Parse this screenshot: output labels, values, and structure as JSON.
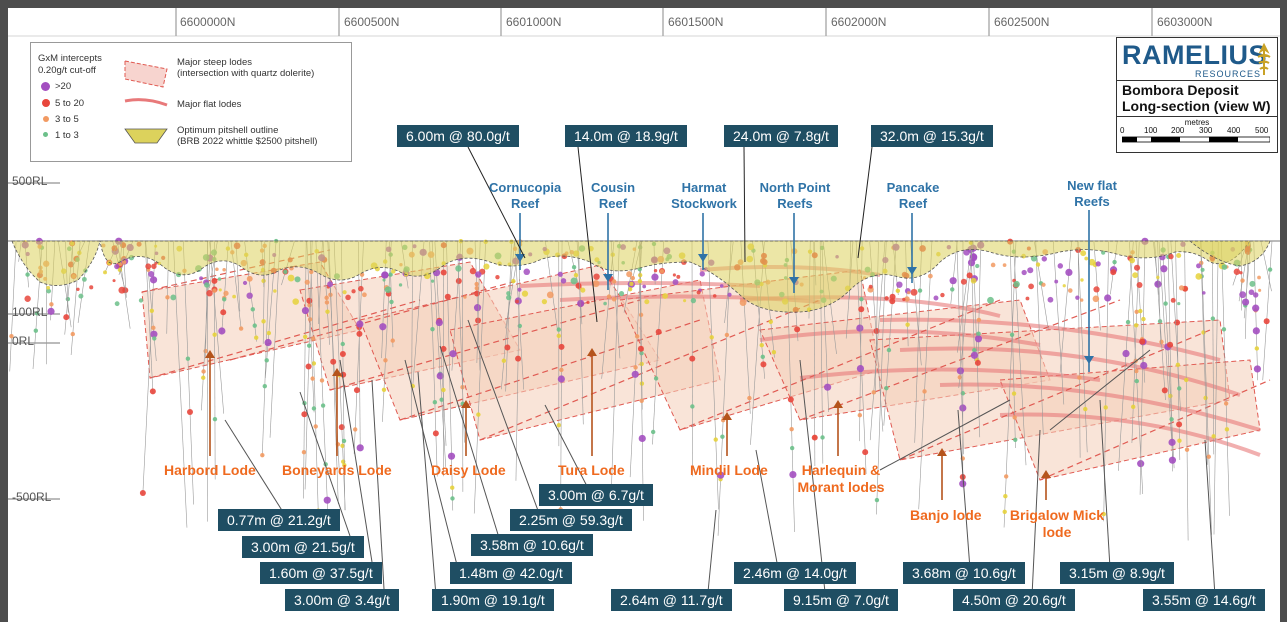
{
  "northings": [
    "6600000N",
    "6600500N",
    "6601000N",
    "6601500N",
    "6602000N",
    "6602500N",
    "6603000N"
  ],
  "rl_labels": [
    "500RL",
    "100RL",
    "0RL",
    "-500RL"
  ],
  "legend": {
    "title_line1": "GxM intercepts",
    "title_line2": "0.20g/t cut-off",
    "classes": [
      {
        "label": ">20",
        "color": "#a34fc0"
      },
      {
        "label": "5 to 20",
        "color": "#e8463c"
      },
      {
        "label": "3 to 5",
        "color": "#f29a62"
      },
      {
        "label": "1 to 3",
        "color": "#6cc08a"
      }
    ],
    "steep_line1": "Major steep lodes",
    "steep_line2": "(intersection with quartz dolerite)",
    "flat": "Major flat lodes",
    "pit_line1": "Optimum pitshell outline",
    "pit_line2": "(BRB 2022 whittle $2500 pitshell)"
  },
  "logo": {
    "name": "RAMELIUS",
    "sub": "RESOURCES",
    "title1": "Bombora Deposit",
    "title2": "Long-section (view W)",
    "scale_unit": "metres",
    "scale_ticks": [
      "0",
      "100",
      "200",
      "300",
      "400",
      "500"
    ]
  },
  "colors": {
    "background": "#ffffff",
    "frame": "#4d4d4d",
    "box": "#1f4e63",
    "lode_text": "#ef6a1f",
    "reef_text": "#2f73a7",
    "pit_fill": "#dcd25c"
  },
  "reefs": [
    {
      "line1": "Cornucopia",
      "line2": "Reef"
    },
    {
      "line1": "Cousin",
      "line2": "Reef"
    },
    {
      "line1": "Harmat",
      "line2": "Stockwork"
    },
    {
      "line1": "North Point",
      "line2": "Reefs"
    },
    {
      "line1": "Pancake",
      "line2": "Reef"
    },
    {
      "line1": "New flat",
      "line2": "Reefs"
    }
  ],
  "lodes": [
    {
      "line1": "Harbord Lode",
      "line2": ""
    },
    {
      "line1": "Boneyards Lode",
      "line2": ""
    },
    {
      "line1": "Daisy Lode",
      "line2": ""
    },
    {
      "line1": "Tura Lode",
      "line2": ""
    },
    {
      "line1": "Mindil Lode",
      "line2": ""
    },
    {
      "line1": "Harlequin &",
      "line2": "Morant lodes"
    },
    {
      "line1": "Banjo lode",
      "line2": ""
    },
    {
      "line1": "Brigalow Mick",
      "line2": "lode"
    }
  ],
  "intercepts": [
    "6.00m @ 80.0g/t",
    "14.0m @ 18.9g/t",
    "24.0m @ 7.8g/t",
    "32.0m @ 15.3g/t",
    "3.00m @ 6.7g/t",
    "2.25m @ 59.3g/t",
    "3.58m @ 10.6g/t",
    "1.48m @ 42.0g/t",
    "1.90m @ 19.1g/t",
    "0.77m @ 21.2g/t",
    "3.00m @ 21.5g/t",
    "1.60m @ 37.5g/t",
    "3.00m @ 3.4g/t",
    "2.64m @ 11.7g/t",
    "2.46m @ 14.0g/t",
    "9.15m @ 7.0g/t",
    "3.68m @ 10.6g/t",
    "4.50m @ 20.6g/t",
    "3.15m @ 8.9g/t",
    "3.55m @ 14.6g/t"
  ]
}
